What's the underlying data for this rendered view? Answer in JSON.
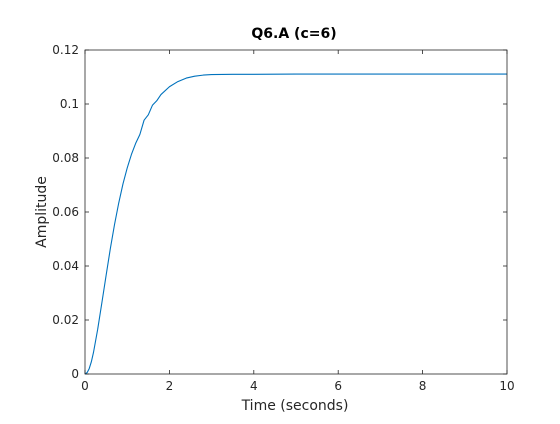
{
  "chart_data": {
    "type": "line",
    "title": "Q6.A (c=6)",
    "xlabel": "Time (seconds)",
    "ylabel": "Amplitude",
    "xlim": [
      0,
      10
    ],
    "ylim": [
      0,
      0.12
    ],
    "x_ticks": [
      0,
      2,
      4,
      6,
      8,
      10
    ],
    "x_tick_labels": [
      "0",
      "2",
      "4",
      "6",
      "8",
      "10"
    ],
    "y_ticks": [
      0,
      0.02,
      0.04,
      0.06,
      0.08,
      0.1,
      0.12
    ],
    "y_tick_labels": [
      "0",
      "0.02",
      "0.04",
      "0.06",
      "0.08",
      "0.1",
      "0.12"
    ],
    "grid": false,
    "series": [
      {
        "color": "#0072bd",
        "x": [
          0,
          0.05,
          0.1,
          0.15,
          0.2,
          0.3,
          0.4,
          0.5,
          0.6,
          0.7,
          0.8,
          0.9,
          1.0,
          1.1,
          1.2,
          1.3,
          1.4,
          1.5,
          1.6,
          1.7,
          1.8,
          2.0,
          2.2,
          2.4,
          2.6,
          2.8,
          3.0,
          3.5,
          4.0,
          5.0,
          6.0,
          7.0,
          8.0,
          9.0,
          10.0
        ],
        "y": [
          0,
          0.0005,
          0.002,
          0.0045,
          0.0079,
          0.0165,
          0.0264,
          0.0365,
          0.0464,
          0.0554,
          0.0634,
          0.0704,
          0.0763,
          0.0813,
          0.0854,
          0.0887,
          0.094,
          0.096,
          0.0996,
          0.1012,
          0.1035,
          0.1064,
          0.1083,
          0.1096,
          0.1103,
          0.1107,
          0.1109,
          0.111,
          0.111,
          0.1111,
          0.1111,
          0.1111,
          0.1111,
          0.1111,
          0.1111
        ]
      }
    ]
  }
}
